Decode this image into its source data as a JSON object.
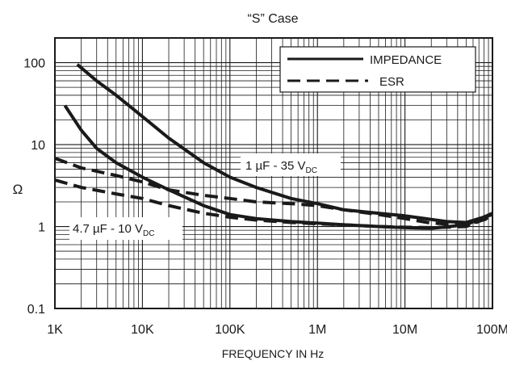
{
  "chart_data": {
    "type": "line",
    "title": "“S” Case",
    "xlabel": "FREQUENCY IN Hz",
    "ylabel": "Ω",
    "x_scale": "log",
    "y_scale": "log",
    "xlim": [
      1000,
      100000000
    ],
    "ylim": [
      0.1,
      200
    ],
    "x_ticks": [
      {
        "value": 1000,
        "label": "1K"
      },
      {
        "value": 10000,
        "label": "10K"
      },
      {
        "value": 100000,
        "label": "100K"
      },
      {
        "value": 1000000,
        "label": "1M"
      },
      {
        "value": 10000000,
        "label": "10M"
      },
      {
        "value": 100000000,
        "label": "100M"
      }
    ],
    "y_ticks": [
      {
        "value": 0.1,
        "label": "0.1"
      },
      {
        "value": 1,
        "label": "1"
      },
      {
        "value": 10,
        "label": "10"
      },
      {
        "value": 100,
        "label": "100"
      }
    ],
    "grid": true,
    "legend": {
      "placement": "top-right",
      "entries": [
        {
          "label": "IMPEDANCE",
          "style": "solid"
        },
        {
          "label": "ESR",
          "style": "dashed"
        }
      ]
    },
    "annotations": [
      {
        "main": "1 µF - 35 V",
        "sub": "DC"
      },
      {
        "main": "4.7 µF - 10 V",
        "sub": "DC"
      }
    ],
    "series": [
      {
        "style": "solid",
        "x": [
          1800,
          3000,
          5000,
          10000,
          20000,
          50000,
          100000,
          200000,
          500000,
          1000000,
          2000000,
          5000000,
          10000000,
          30000000,
          50000000,
          100000000
        ],
        "y": [
          95,
          60,
          40,
          22,
          12,
          6,
          4,
          3,
          2.2,
          1.9,
          1.6,
          1.45,
          1.35,
          1.15,
          1.12,
          1.4
        ]
      },
      {
        "style": "dashed",
        "x": [
          1000,
          2000,
          5000,
          10000,
          20000,
          50000,
          100000,
          200000,
          500000,
          1000000,
          2000000,
          5000000,
          10000000,
          20000000,
          50000000,
          100000000
        ],
        "y": [
          6.8,
          5.2,
          4.2,
          3.5,
          2.8,
          2.4,
          2.2,
          2.0,
          1.9,
          1.8,
          1.6,
          1.4,
          1.25,
          1.1,
          1.05,
          1.3
        ]
      },
      {
        "style": "solid",
        "x": [
          1300,
          2000,
          3000,
          5000,
          10000,
          20000,
          50000,
          100000,
          200000,
          500000,
          1000000,
          2000000,
          5000000,
          10000000,
          20000000,
          50000000,
          100000000
        ],
        "y": [
          30,
          15,
          9,
          6,
          4,
          2.8,
          1.8,
          1.4,
          1.25,
          1.15,
          1.1,
          1.05,
          1.0,
          0.97,
          0.95,
          1.05,
          1.45
        ]
      },
      {
        "style": "dashed",
        "x": [
          1000,
          2000,
          5000,
          10000,
          20000,
          50000,
          100000,
          200000,
          500000,
          1000000,
          2000000,
          5000000,
          10000000,
          20000000,
          50000000,
          100000000
        ],
        "y": [
          3.7,
          3.0,
          2.5,
          2.2,
          1.8,
          1.45,
          1.3,
          1.2,
          1.12,
          1.08,
          1.05,
          1.0,
          0.98,
          0.97,
          1.0,
          1.35
        ]
      }
    ]
  }
}
